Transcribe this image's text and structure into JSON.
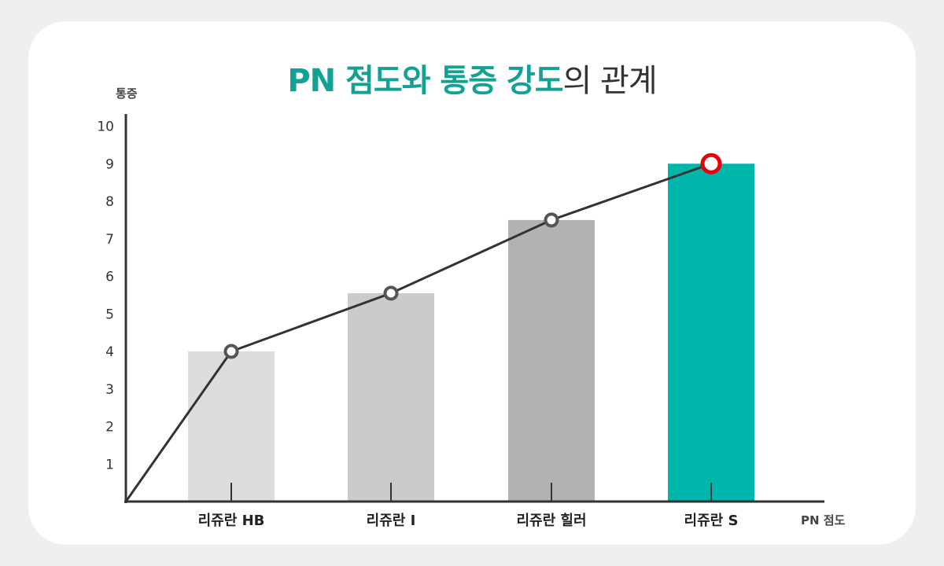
{
  "title": {
    "part1": "PN 점도와",
    "part2": "통증 강도",
    "part3": "의 관계"
  },
  "chart_data": {
    "type": "bar",
    "title": "PN 점도와 통증 강도의 관계",
    "xlabel": "PN 점도",
    "ylabel": "통증",
    "categories": [
      "리쥬란 HB",
      "리쥬란 I",
      "리쥬란 힐러",
      "리쥬란 S"
    ],
    "values": [
      4,
      5.55,
      7.5,
      9
    ],
    "line_values": [
      4,
      5.55,
      7.5,
      9
    ],
    "ylim": [
      0,
      10
    ],
    "yticks": [
      "1",
      "2",
      "3",
      "4",
      "5",
      "6",
      "7",
      "8",
      "9",
      "10"
    ],
    "grid": false,
    "colors": {
      "bars": [
        "#dddddd",
        "#cbcbcb",
        "#b2b2b2",
        "#00b5aa"
      ],
      "line": "#333333",
      "marker": "#555555",
      "highlight_marker": "#e8000b",
      "axis": "#333333",
      "title_accent": "#11a295"
    }
  }
}
